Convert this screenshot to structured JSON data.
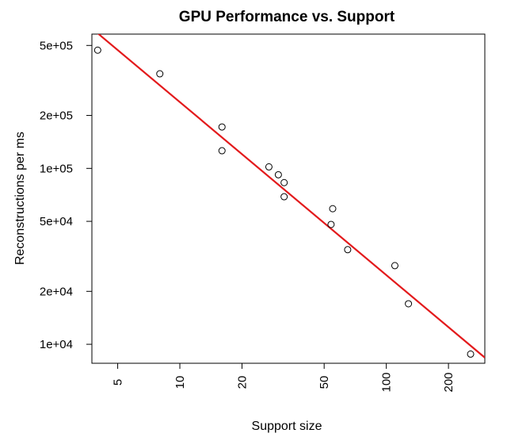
{
  "chart_data": {
    "type": "scatter",
    "title": "GPU Performance vs. Support",
    "xlabel": "Support size",
    "ylabel": "Reconstructions per ms",
    "x_scale": "log",
    "y_scale": "log",
    "xlim": [
      3.75,
      300
    ],
    "ylim": [
      7800,
      580000
    ],
    "x_ticks": [
      {
        "value": 5,
        "label": "5"
      },
      {
        "value": 10,
        "label": "10"
      },
      {
        "value": 20,
        "label": "20"
      },
      {
        "value": 50,
        "label": "50"
      },
      {
        "value": 100,
        "label": "100"
      },
      {
        "value": 200,
        "label": "200"
      }
    ],
    "y_ticks": [
      {
        "value": 10000,
        "label": "1e+04"
      },
      {
        "value": 20000,
        "label": "2e+04"
      },
      {
        "value": 50000,
        "label": "5e+04"
      },
      {
        "value": 100000,
        "label": "1e+05"
      },
      {
        "value": 200000,
        "label": "2e+05"
      },
      {
        "value": 500000,
        "label": "5e+05"
      }
    ],
    "points": [
      {
        "x": 4,
        "y": 470000
      },
      {
        "x": 8,
        "y": 345000
      },
      {
        "x": 16,
        "y": 172000
      },
      {
        "x": 16,
        "y": 126000
      },
      {
        "x": 27,
        "y": 102000
      },
      {
        "x": 30,
        "y": 92000
      },
      {
        "x": 32,
        "y": 83000
      },
      {
        "x": 32,
        "y": 69000
      },
      {
        "x": 54,
        "y": 48000
      },
      {
        "x": 55,
        "y": 59000
      },
      {
        "x": 65,
        "y": 34500
      },
      {
        "x": 110,
        "y": 28000
      },
      {
        "x": 128,
        "y": 17000
      },
      {
        "x": 256,
        "y": 8800
      }
    ],
    "fit_line": {
      "points": [
        {
          "x": 3.75,
          "y": 625000
        },
        {
          "x": 300,
          "y": 8400
        }
      ],
      "color": "#e31a1c"
    },
    "grid": false,
    "legend": "none"
  }
}
